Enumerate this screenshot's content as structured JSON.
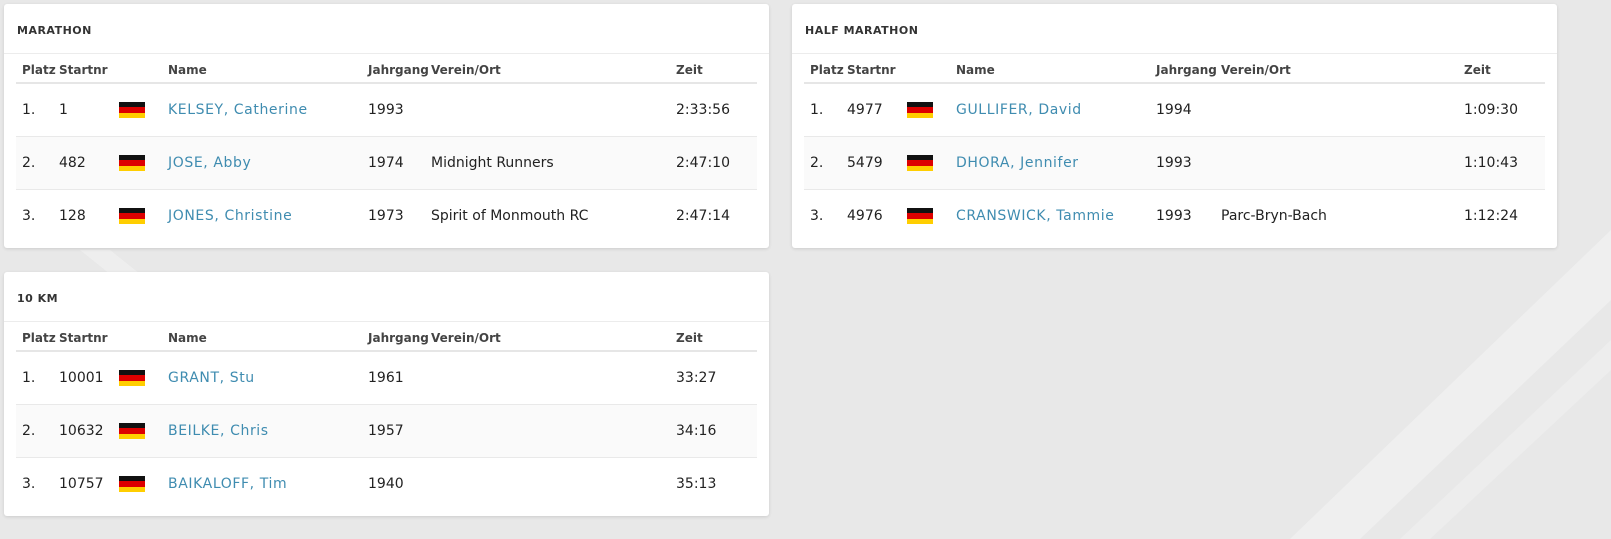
{
  "columns": {
    "platz": "Platz",
    "startnr": "Startnr",
    "name": "Name",
    "jahrgang": "Jahrgang",
    "verein": "Verein/Ort",
    "zeit": "Zeit"
  },
  "panels": [
    {
      "title": "MARATHON",
      "rows": [
        {
          "platz": "1.",
          "startnr": "1",
          "flag": "germany-flag-icon",
          "name": "KELSEY, Catherine",
          "jahrgang": "1993",
          "verein": "",
          "zeit": "2:33:56"
        },
        {
          "platz": "2.",
          "startnr": "482",
          "flag": "germany-flag-icon",
          "name": "JOSE, Abby",
          "jahrgang": "1974",
          "verein": "Midnight Runners",
          "zeit": "2:47:10"
        },
        {
          "platz": "3.",
          "startnr": "128",
          "flag": "germany-flag-icon",
          "name": "JONES, Christine",
          "jahrgang": "1973",
          "verein": "Spirit of Monmouth RC",
          "zeit": "2:47:14"
        }
      ]
    },
    {
      "title": "HALF MARATHON",
      "rows": [
        {
          "platz": "1.",
          "startnr": "4977",
          "flag": "germany-flag-icon",
          "name": "GULLIFER, David",
          "jahrgang": "1994",
          "verein": "",
          "zeit": "1:09:30"
        },
        {
          "platz": "2.",
          "startnr": "5479",
          "flag": "germany-flag-icon",
          "name": "DHORA, Jennifer",
          "jahrgang": "1993",
          "verein": "",
          "zeit": "1:10:43"
        },
        {
          "platz": "3.",
          "startnr": "4976",
          "flag": "germany-flag-icon",
          "name": "CRANSWICK, Tammie",
          "jahrgang": "1993",
          "verein": "Parc-Bryn-Bach",
          "zeit": "1:12:24"
        }
      ]
    },
    {
      "title": "10 KM",
      "rows": [
        {
          "platz": "1.",
          "startnr": "10001",
          "flag": "germany-flag-icon",
          "name": "GRANT, Stu",
          "jahrgang": "1961",
          "verein": "",
          "zeit": "33:27"
        },
        {
          "platz": "2.",
          "startnr": "10632",
          "flag": "germany-flag-icon",
          "name": "BEILKE, Chris",
          "jahrgang": "1957",
          "verein": "",
          "zeit": "34:16"
        },
        {
          "platz": "3.",
          "startnr": "10757",
          "flag": "germany-flag-icon",
          "name": "BAIKALOFF, Tim",
          "jahrgang": "1940",
          "verein": "",
          "zeit": "35:13"
        }
      ]
    }
  ],
  "colors": {
    "background": "#e8e8e8",
    "card": "#ffffff",
    "link": "#3f8cb0"
  }
}
